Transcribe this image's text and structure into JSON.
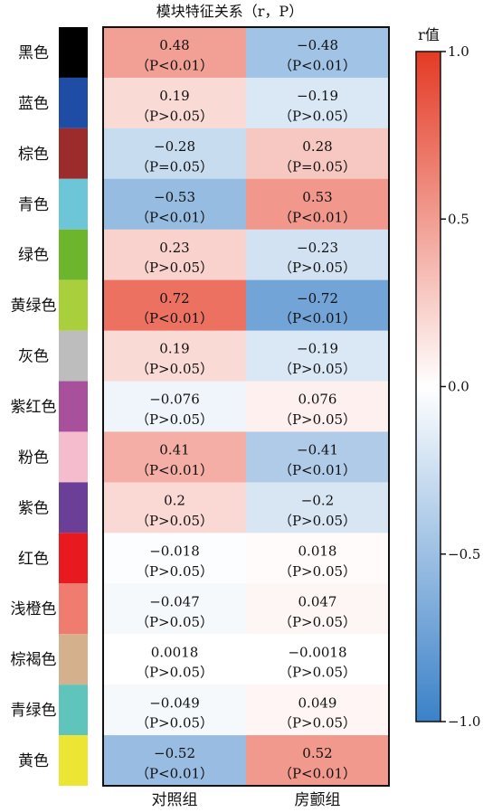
{
  "chart_data": {
    "type": "heatmap",
    "title": "模块特征关系（r，P）",
    "columns": [
      "对照组",
      "房颤组"
    ],
    "rows": [
      {
        "label": "黑色",
        "swatch": "#000000",
        "values": [
          0.48,
          -0.48
        ],
        "r_text": [
          "0.48",
          "−0.48"
        ],
        "p_text": [
          "（P<0.01）",
          "（P<0.01）"
        ]
      },
      {
        "label": "蓝色",
        "swatch": "#1f4ca5",
        "values": [
          0.19,
          -0.19
        ],
        "r_text": [
          "0.19",
          "−0.19"
        ],
        "p_text": [
          "（P>0.05）",
          "（P>0.05）"
        ]
      },
      {
        "label": "棕色",
        "swatch": "#9c2b2b",
        "values": [
          -0.28,
          0.28
        ],
        "r_text": [
          "−0.28",
          "0.28"
        ],
        "p_text": [
          "（P=0.05）",
          "（P=0.05）"
        ]
      },
      {
        "label": "青色",
        "swatch": "#6dc5d8",
        "values": [
          -0.53,
          0.53
        ],
        "r_text": [
          "−0.53",
          "0.53"
        ],
        "p_text": [
          "（P<0.01）",
          "（P<0.01）"
        ]
      },
      {
        "label": "绿色",
        "swatch": "#6cb52d",
        "values": [
          0.23,
          -0.23
        ],
        "r_text": [
          "0.23",
          "−0.23"
        ],
        "p_text": [
          "（P>0.05）",
          "（P>0.05）"
        ]
      },
      {
        "label": "黄绿色",
        "swatch": "#a9cf3c",
        "values": [
          0.72,
          -0.72
        ],
        "r_text": [
          "0.72",
          "−0.72"
        ],
        "p_text": [
          "（P<0.01）",
          "（P<0.01）"
        ]
      },
      {
        "label": "灰色",
        "swatch": "#bdbdbd",
        "values": [
          0.19,
          -0.19
        ],
        "r_text": [
          "0.19",
          "−0.19"
        ],
        "p_text": [
          "（P>0.05）",
          "（P>0.05）"
        ]
      },
      {
        "label": "紫红色",
        "swatch": "#a9509c",
        "values": [
          -0.076,
          0.076
        ],
        "r_text": [
          "−0.076",
          "0.076"
        ],
        "p_text": [
          "（P>0.05）",
          "（P>0.05）"
        ]
      },
      {
        "label": "粉色",
        "swatch": "#f4bccd",
        "values": [
          0.41,
          -0.41
        ],
        "r_text": [
          "0.41",
          "−0.41"
        ],
        "p_text": [
          "（P<0.01）",
          "（P<0.01）"
        ]
      },
      {
        "label": "紫色",
        "swatch": "#6b3f98",
        "values": [
          0.2,
          -0.2
        ],
        "r_text": [
          "0.2",
          "−0.2"
        ],
        "p_text": [
          "（P>0.05）",
          "（P>0.05）"
        ]
      },
      {
        "label": "红色",
        "swatch": "#e8191f",
        "values": [
          -0.018,
          0.018
        ],
        "r_text": [
          "−0.018",
          "0.018"
        ],
        "p_text": [
          "（P>0.05）",
          "（P>0.05）"
        ]
      },
      {
        "label": "浅橙色",
        "swatch": "#f07b6f",
        "values": [
          -0.047,
          0.047
        ],
        "r_text": [
          "−0.047",
          "0.047"
        ],
        "p_text": [
          "（P>0.05）",
          "（P>0.05）"
        ]
      },
      {
        "label": "棕褐色",
        "swatch": "#d4b08c",
        "values": [
          0.0018,
          -0.0018
        ],
        "r_text": [
          "0.0018",
          "−0.0018"
        ],
        "p_text": [
          "（P>0.05）",
          "（P>0.05）"
        ]
      },
      {
        "label": "青绿色",
        "swatch": "#5fc4bb",
        "values": [
          -0.049,
          0.049
        ],
        "r_text": [
          "−0.049",
          "0.049"
        ],
        "p_text": [
          "（P>0.05）",
          "（P>0.05）"
        ]
      },
      {
        "label": "黄色",
        "swatch": "#ece533",
        "values": [
          -0.52,
          0.52
        ],
        "r_text": [
          "−0.52",
          "0.52"
        ],
        "p_text": [
          "（P<0.01）",
          "（P<0.01）"
        ]
      }
    ],
    "colorbar": {
      "title": "r值",
      "range": [
        -1.0,
        1.0
      ],
      "ticks": [
        1.0,
        0.5,
        0.0,
        -0.5,
        -1.0
      ],
      "tick_labels": [
        "1.0",
        "0.5",
        "0.0",
        "−0.5",
        "−1.0"
      ],
      "colors": {
        "negative": "#3b81c8",
        "zero": "#ffffff",
        "positive": "#e43a24"
      }
    }
  }
}
